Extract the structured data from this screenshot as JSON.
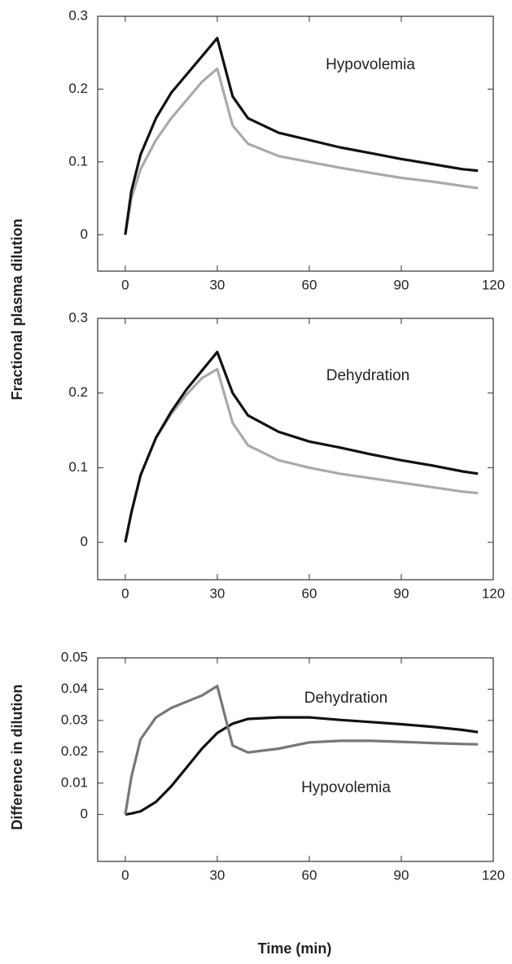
{
  "chart_data": [
    {
      "type": "line",
      "ylabel": "Fractional plasma dilution",
      "annotations": [
        "Hypovolemia"
      ],
      "x": [
        0,
        2,
        5,
        10,
        15,
        20,
        25,
        30,
        35,
        40,
        50,
        60,
        70,
        80,
        90,
        100,
        110,
        115
      ],
      "series": [
        {
          "color": "#aaaaaa",
          "values": [
            0,
            0.05,
            0.09,
            0.13,
            0.16,
            0.185,
            0.21,
            0.228,
            0.15,
            0.125,
            0.108,
            0.1,
            0.092,
            0.085,
            0.078,
            0.073,
            0.067,
            0.064
          ]
        },
        {
          "color": "#111111",
          "values": [
            0,
            0.06,
            0.11,
            0.16,
            0.195,
            0.22,
            0.245,
            0.27,
            0.19,
            0.16,
            0.14,
            0.13,
            0.12,
            0.112,
            0.104,
            0.097,
            0.09,
            0.088
          ]
        }
      ],
      "xlim": [
        -9,
        120
      ],
      "xticks": [
        0,
        30,
        60,
        90,
        120
      ],
      "ylim": [
        -0.05,
        0.3
      ],
      "yticks": [
        0,
        0.1,
        0.2,
        0.3
      ]
    },
    {
      "type": "line",
      "annotations": [
        "Dehydration"
      ],
      "x": [
        0,
        2,
        5,
        10,
        15,
        20,
        25,
        30,
        35,
        40,
        50,
        60,
        70,
        80,
        90,
        100,
        110,
        115
      ],
      "series": [
        {
          "color": "#aaaaaa",
          "values": [
            0,
            0.04,
            0.09,
            0.14,
            0.172,
            0.198,
            0.22,
            0.232,
            0.16,
            0.13,
            0.11,
            0.1,
            0.092,
            0.086,
            0.08,
            0.074,
            0.068,
            0.066
          ]
        },
        {
          "color": "#111111",
          "values": [
            0,
            0.04,
            0.09,
            0.14,
            0.175,
            0.205,
            0.23,
            0.255,
            0.2,
            0.17,
            0.148,
            0.135,
            0.127,
            0.118,
            0.11,
            0.103,
            0.095,
            0.092
          ]
        }
      ],
      "xlim": [
        -9,
        120
      ],
      "xticks": [
        0,
        30,
        60,
        90,
        120
      ],
      "ylim": [
        -0.05,
        0.3
      ],
      "yticks": [
        0,
        0.1,
        0.2,
        0.3
      ]
    },
    {
      "type": "line",
      "ylabel": "Difference in dilution",
      "xlabel": "Time (min)",
      "annotations": [
        "Dehydration",
        "Hypovolemia"
      ],
      "x": [
        0,
        2,
        5,
        10,
        15,
        20,
        25,
        30,
        35,
        40,
        50,
        60,
        70,
        80,
        90,
        100,
        110,
        115
      ],
      "series": [
        {
          "color": "#111111",
          "values": [
            0,
            0.0003,
            0.001,
            0.004,
            0.009,
            0.015,
            0.021,
            0.026,
            0.029,
            0.0305,
            0.031,
            0.031,
            0.0302,
            0.0295,
            0.0288,
            0.028,
            0.027,
            0.0263
          ]
        },
        {
          "color": "#777777",
          "values": [
            0,
            0.012,
            0.024,
            0.031,
            0.034,
            0.036,
            0.038,
            0.041,
            0.022,
            0.0198,
            0.021,
            0.023,
            0.0235,
            0.0235,
            0.0232,
            0.0228,
            0.0225,
            0.0224
          ]
        }
      ],
      "xlim": [
        -9,
        120
      ],
      "xticks": [
        0,
        30,
        60,
        90,
        120
      ],
      "ylim": [
        -0.015,
        0.05
      ],
      "yticks": [
        0,
        0.01,
        0.02,
        0.03,
        0.04,
        0.05
      ]
    }
  ]
}
